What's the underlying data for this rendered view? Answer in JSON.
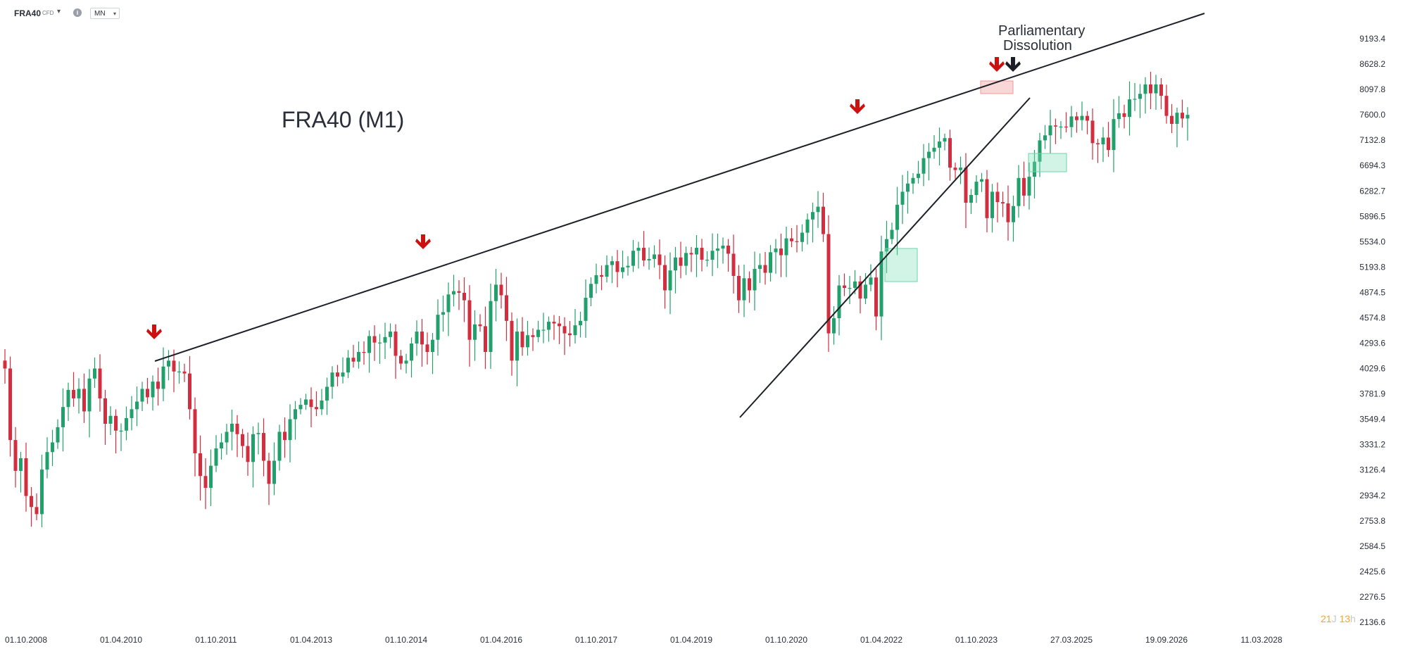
{
  "toolbar": {
    "symbol": "FRA40",
    "instrument_type": "CFD",
    "info_icon": "info-icon",
    "interval": "MN"
  },
  "chart_data": {
    "type": "candlestick",
    "title": "FRA40 (M1)",
    "annotation": [
      "Parliamentary",
      "Dissolution"
    ],
    "x_ticks": [
      "01.10.2008",
      "01.04.2010",
      "01.10.2011",
      "01.04.2013",
      "01.10.2014",
      "01.04.2016",
      "01.10.2017",
      "01.04.2019",
      "01.10.2020",
      "01.04.2022",
      "01.10.2023",
      "27.03.2025",
      "19.09.2026",
      "11.03.2028"
    ],
    "y_ticks": [
      "9193.4",
      "8628.2",
      "8097.8",
      "7600.0",
      "7132.8",
      "6694.3",
      "6282.7",
      "5896.5",
      "5534.0",
      "5193.8",
      "4874.5",
      "4574.8",
      "4293.6",
      "4029.6",
      "3781.9",
      "3549.4",
      "3331.2",
      "3126.4",
      "2934.2",
      "2753.8",
      "2584.5",
      "2425.6",
      "2276.5",
      "2136.6"
    ],
    "y_scale": "log",
    "ylim": [
      2136.6,
      9193.4
    ],
    "start_month": "2008-10",
    "colors": {
      "up": "#22a06b",
      "down": "#d12f3f",
      "line": "#1c1f26",
      "zone_green": "#7ee0b8",
      "zone_red": "#f4a6a6"
    },
    "closes": [
      4030,
      3370,
      3120,
      3220,
      2930,
      2850,
      2800,
      3130,
      3270,
      3350,
      3480,
      3660,
      3820,
      3740,
      3830,
      3620,
      3930,
      4030,
      3740,
      3510,
      3580,
      3450,
      3450,
      3560,
      3640,
      3710,
      3830,
      3750,
      3900,
      3830,
      4050,
      4110,
      4000,
      4000,
      3980,
      3640,
      3260,
      3080,
      2990,
      3160,
      3300,
      3350,
      3440,
      3510,
      3420,
      3320,
      3190,
      3420,
      3430,
      3200,
      3020,
      3200,
      3440,
      3370,
      3550,
      3640,
      3680,
      3730,
      3660,
      3640,
      3720,
      3850,
      3990,
      3950,
      3990,
      4140,
      4100,
      4200,
      4190,
      4370,
      4300,
      4300,
      4360,
      4420,
      4160,
      4080,
      4110,
      4290,
      4420,
      4280,
      4200,
      4330,
      4610,
      4640,
      4850,
      4890,
      4870,
      4780,
      4330,
      4500,
      4480,
      4200,
      4770,
      4970,
      4840,
      4540,
      4110,
      4420,
      4250,
      4380,
      4360,
      4440,
      4440,
      4530,
      4510,
      4480,
      4400,
      4380,
      4490,
      4540,
      4810,
      4980,
      5090,
      5070,
      5220,
      5270,
      5130,
      5190,
      5210,
      5410,
      5450,
      5280,
      5300,
      5360,
      5220,
      4900,
      5150,
      5320,
      5210,
      5380,
      5360,
      5450,
      5290,
      5290,
      5410,
      5440,
      5480,
      5370,
      5080,
      4780,
      5050,
      4900,
      5170,
      5220,
      5120,
      5390,
      5440,
      5350,
      5580,
      5540,
      5530,
      5660,
      5850,
      5960,
      6040,
      5640,
      4400,
      4570,
      4960,
      4930,
      4930,
      5010,
      4800,
      4970,
      5060,
      4590,
      5400,
      5570,
      5700,
      6070,
      6270,
      6400,
      6490,
      6560,
      6820,
      6930,
      7000,
      7110,
      7170,
      6660,
      6620,
      6660,
      6100,
      6220,
      6430,
      6470,
      5870,
      6270,
      6110,
      6090,
      5810,
      6050,
      6490,
      6210,
      6510,
      6760,
      7130,
      7220,
      7400,
      7380,
      7380,
      7370,
      7570,
      7500,
      7580,
      7490,
      7080,
      7060,
      7180,
      6960,
      7520,
      7630,
      7560,
      7900,
      7910,
      8010,
      8200,
      8020,
      8200,
      7970,
      7580,
      7430,
      7640,
      7530,
      7600
    ]
  }
}
